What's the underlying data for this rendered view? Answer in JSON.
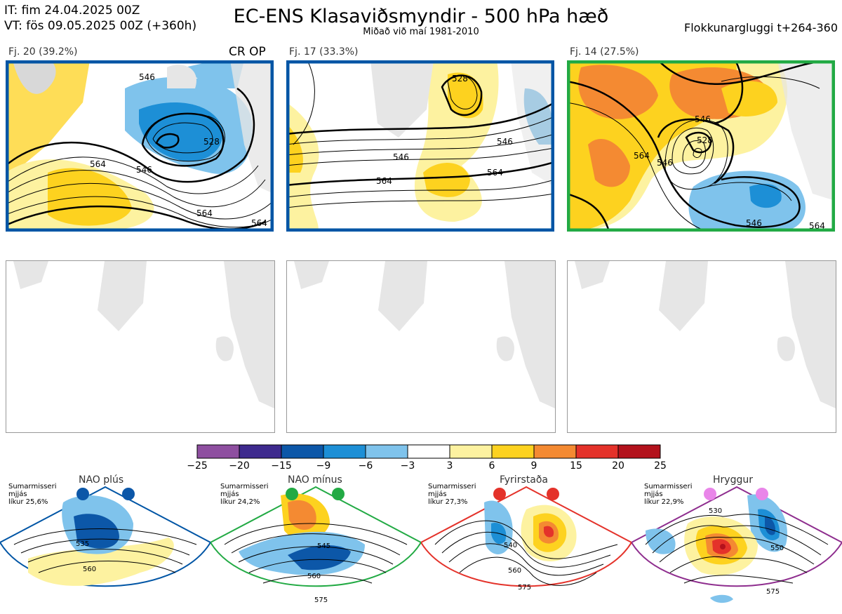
{
  "header": {
    "it_line": "IT: fim 24.04.2025 00Z",
    "vt_line": "VT: fös 09.05.2025 00Z  (+360h)",
    "title": "EC-ENS Klasaviðsmyndir - 500 hPa hæð",
    "subtitle": "Miðað við maí 1981-2010",
    "window": "Flokkunargluggi t+264-360"
  },
  "clusters": [
    {
      "label": "Fj. 20 (39.2%)",
      "flag": "CR OP",
      "border_color": "#0055a5",
      "contours": [
        "546",
        "528",
        "546",
        "564",
        "564",
        "564"
      ]
    },
    {
      "label": "Fj. 17 (33.3%)",
      "flag": "",
      "border_color": "#0055a5",
      "contours": [
        "528",
        "546",
        "546",
        "564",
        "564"
      ]
    },
    {
      "label": "Fj. 14 (27.5%)",
      "flag": "",
      "border_color": "#22aa44",
      "contours": [
        "546",
        "528",
        "546",
        "564",
        "546",
        "564"
      ]
    }
  ],
  "chart_data": {
    "type": "heatmap",
    "colorbar": {
      "ticks": [
        "−25",
        "−20",
        "−15",
        "−9",
        "−6",
        "−3",
        "3",
        "6",
        "9",
        "15",
        "20",
        "25"
      ],
      "colors": [
        "#8e4fa0",
        "#3e2a8e",
        "#0c57a8",
        "#1d8fd6",
        "#7fc3ec",
        "#ffffff",
        "#fdf2a0",
        "#fdd21f",
        "#f48a32",
        "#e4322a",
        "#b3121c"
      ]
    }
  },
  "regimes": [
    {
      "name": "NAO plús",
      "note1": "Sumarmisseri",
      "note2": "mjjás",
      "note3": "líkur 25,6%",
      "dot_color": "#0c57a8",
      "border_color": "#0055a5",
      "labels": [
        "535",
        "560"
      ]
    },
    {
      "name": "NAO mínus",
      "note1": "Sumarmisseri",
      "note2": "mjjás",
      "note3": "líkur 24,2%",
      "dot_color": "#22aa44",
      "border_color": "#22aa44",
      "labels": [
        "545",
        "560",
        "575"
      ]
    },
    {
      "name": "Fyrirstaða",
      "note1": "Sumarmisseri",
      "note2": "mjjás",
      "note3": "líkur 27,3%",
      "dot_color": "#e4322a",
      "border_color": "#e4322a",
      "labels": [
        "540",
        "560",
        "575"
      ]
    },
    {
      "name": "Hryggur",
      "note1": "Sumarmisseri",
      "note2": "mjjás",
      "note3": "líkur 22,9%",
      "dot_color": "#e985e9",
      "border_color": "#8e2d8e",
      "labels": [
        "530",
        "550",
        "575"
      ]
    }
  ]
}
